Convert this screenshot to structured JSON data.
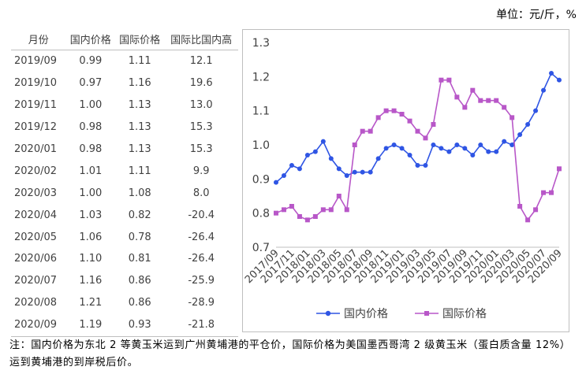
{
  "unit_label": "单位：元/斤，%",
  "table": {
    "headers": [
      "月份",
      "国内价格",
      "国际价格",
      "国际比国内高"
    ],
    "rows": [
      [
        "2019/09",
        "0.99",
        "1.11",
        "12.1"
      ],
      [
        "2019/10",
        "0.97",
        "1.16",
        "19.6"
      ],
      [
        "2019/11",
        "1.00",
        "1.13",
        "13.0"
      ],
      [
        "2019/12",
        "0.98",
        "1.13",
        "15.3"
      ],
      [
        "2020/01",
        "0.98",
        "1.13",
        "15.3"
      ],
      [
        "2020/02",
        "1.01",
        "1.11",
        "9.9"
      ],
      [
        "2020/03",
        "1.00",
        "1.08",
        "8.0"
      ],
      [
        "2020/04",
        "1.03",
        "0.82",
        "-20.4"
      ],
      [
        "2020/05",
        "1.06",
        "0.78",
        "-26.4"
      ],
      [
        "2020/06",
        "1.10",
        "0.81",
        "-26.4"
      ],
      [
        "2020/07",
        "1.16",
        "0.86",
        "-25.9"
      ],
      [
        "2020/08",
        "1.21",
        "0.86",
        "-28.9"
      ],
      [
        "2020/09",
        "1.19",
        "0.93",
        "-21.8"
      ]
    ]
  },
  "note": "注：国内价格为东北 2 等黄玉米运到广州黄埔港的平仓价，国际价格为美国墨西哥湾 2 级黄玉米（蛋白质含量 12%）运到黄埔港的到岸税后价。",
  "colors": {
    "domestic": "#2f55e4",
    "international": "#b857c8",
    "axis": "#bfbfbf",
    "text": "#404040"
  },
  "chart_data": {
    "type": "line",
    "x": [
      "2017/09",
      "2017/10",
      "2017/11",
      "2017/12",
      "2018/01",
      "2018/02",
      "2018/03",
      "2018/04",
      "2018/05",
      "2018/06",
      "2018/07",
      "2018/08",
      "2018/09",
      "2018/10",
      "2018/11",
      "2018/12",
      "2019/01",
      "2019/02",
      "2019/03",
      "2019/04",
      "2019/05",
      "2019/06",
      "2019/07",
      "2019/08",
      "2019/09",
      "2019/10",
      "2019/11",
      "2019/12",
      "2020/01",
      "2020/02",
      "2020/03",
      "2020/04",
      "2020/05",
      "2020/06",
      "2020/07",
      "2020/08",
      "2020/09"
    ],
    "x_tick_labels": [
      "2017/09",
      "2017/11",
      "2018/01",
      "2018/03",
      "2018/05",
      "2018/07",
      "2018/09",
      "2018/11",
      "2019/01",
      "2019/03",
      "2019/05",
      "2019/07",
      "2019/09",
      "2019/11",
      "2020/01",
      "2020/03",
      "2020/05",
      "2020/07",
      "2020/09"
    ],
    "series": [
      {
        "name": "国内价格",
        "values": [
          0.89,
          0.91,
          0.94,
          0.93,
          0.97,
          0.98,
          1.01,
          0.96,
          0.93,
          0.91,
          0.92,
          0.92,
          0.92,
          0.96,
          0.99,
          1.0,
          0.99,
          0.97,
          0.94,
          0.94,
          1.0,
          0.99,
          0.98,
          1.0,
          0.99,
          0.97,
          1.0,
          0.98,
          0.98,
          1.01,
          1.0,
          1.03,
          1.06,
          1.1,
          1.16,
          1.21,
          1.19
        ]
      },
      {
        "name": "国际价格",
        "values": [
          0.8,
          0.81,
          0.82,
          0.79,
          0.78,
          0.79,
          0.81,
          0.81,
          0.85,
          0.81,
          1.0,
          1.04,
          1.04,
          1.08,
          1.1,
          1.1,
          1.09,
          1.07,
          1.04,
          1.02,
          1.06,
          1.19,
          1.19,
          1.14,
          1.11,
          1.16,
          1.13,
          1.13,
          1.13,
          1.11,
          1.08,
          0.82,
          0.78,
          0.81,
          0.86,
          0.86,
          0.93
        ]
      }
    ],
    "ylim": [
      0.7,
      1.3
    ],
    "yticks": [
      "0.7",
      "0.8",
      "0.9",
      "1.0",
      "1.1",
      "1.2",
      "1.3"
    ],
    "grid": false,
    "legend_position": "bottom"
  }
}
